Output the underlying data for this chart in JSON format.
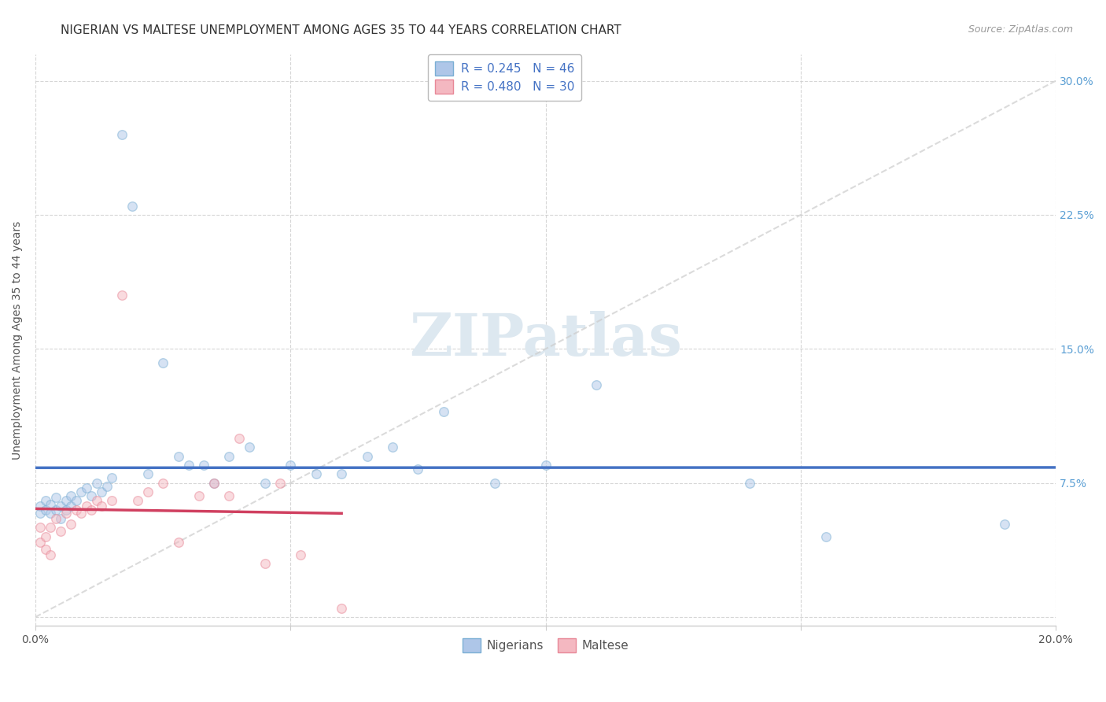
{
  "title": "NIGERIAN VS MALTESE UNEMPLOYMENT AMONG AGES 35 TO 44 YEARS CORRELATION CHART",
  "source": "Source: ZipAtlas.com",
  "ylabel": "Unemployment Among Ages 35 to 44 years",
  "xlim": [
    0.0,
    0.2
  ],
  "ylim": [
    -0.005,
    0.315
  ],
  "xticks": [
    0.0,
    0.05,
    0.1,
    0.15,
    0.2
  ],
  "xticklabels": [
    "0.0%",
    "",
    "",
    "",
    "20.0%"
  ],
  "yticks": [
    0.0,
    0.075,
    0.15,
    0.225,
    0.3
  ],
  "yticklabels_right": [
    "",
    "7.5%",
    "15.0%",
    "22.5%",
    "30.0%"
  ],
  "legend_entries": [
    {
      "label": "R = 0.245   N = 46",
      "color": "#aec6e8"
    },
    {
      "label": "R = 0.480   N = 30",
      "color": "#f4b8c1"
    }
  ],
  "bottom_legend": [
    {
      "label": "Nigerians",
      "color": "#aec6e8"
    },
    {
      "label": "Maltese",
      "color": "#f4b8c1"
    }
  ],
  "nigerian_x": [
    0.001,
    0.001,
    0.002,
    0.002,
    0.003,
    0.003,
    0.004,
    0.004,
    0.005,
    0.005,
    0.006,
    0.006,
    0.007,
    0.007,
    0.008,
    0.009,
    0.01,
    0.011,
    0.012,
    0.013,
    0.014,
    0.015,
    0.017,
    0.019,
    0.022,
    0.025,
    0.028,
    0.03,
    0.033,
    0.035,
    0.038,
    0.042,
    0.045,
    0.05,
    0.055,
    0.06,
    0.065,
    0.07,
    0.075,
    0.08,
    0.09,
    0.1,
    0.11,
    0.14,
    0.155,
    0.19
  ],
  "nigerian_y": [
    0.062,
    0.058,
    0.065,
    0.06,
    0.063,
    0.058,
    0.067,
    0.06,
    0.062,
    0.055,
    0.065,
    0.06,
    0.068,
    0.062,
    0.065,
    0.07,
    0.072,
    0.068,
    0.075,
    0.07,
    0.073,
    0.078,
    0.27,
    0.23,
    0.08,
    0.142,
    0.09,
    0.085,
    0.085,
    0.075,
    0.09,
    0.095,
    0.075,
    0.085,
    0.08,
    0.08,
    0.09,
    0.095,
    0.083,
    0.115,
    0.075,
    0.085,
    0.13,
    0.075,
    0.045,
    0.052
  ],
  "maltese_x": [
    0.001,
    0.001,
    0.002,
    0.002,
    0.003,
    0.003,
    0.004,
    0.005,
    0.006,
    0.007,
    0.008,
    0.009,
    0.01,
    0.011,
    0.012,
    0.013,
    0.015,
    0.017,
    0.02,
    0.022,
    0.025,
    0.028,
    0.032,
    0.035,
    0.038,
    0.04,
    0.045,
    0.048,
    0.052,
    0.06
  ],
  "maltese_y": [
    0.05,
    0.042,
    0.045,
    0.038,
    0.05,
    0.035,
    0.055,
    0.048,
    0.058,
    0.052,
    0.06,
    0.058,
    0.062,
    0.06,
    0.065,
    0.062,
    0.065,
    0.18,
    0.065,
    0.07,
    0.075,
    0.042,
    0.068,
    0.075,
    0.068,
    0.1,
    0.03,
    0.075,
    0.035,
    0.005
  ],
  "background_color": "#ffffff",
  "grid_color": "#cccccc",
  "scatter_alpha": 0.5,
  "scatter_size": 70,
  "nigerian_color": "#aec6e8",
  "nigerian_edge": "#7bafd4",
  "maltese_color": "#f4b8c1",
  "maltese_edge": "#e88898",
  "regression_nigerian_color": "#4472c4",
  "regression_maltese_color": "#d04060",
  "diagonal_color": "#cccccc",
  "title_fontsize": 11,
  "source_fontsize": 9,
  "axis_label_fontsize": 10,
  "tick_fontsize": 10,
  "legend_fontsize": 11,
  "tick_color_right": "#5b9fd4",
  "watermark_color": "#dde8f0"
}
